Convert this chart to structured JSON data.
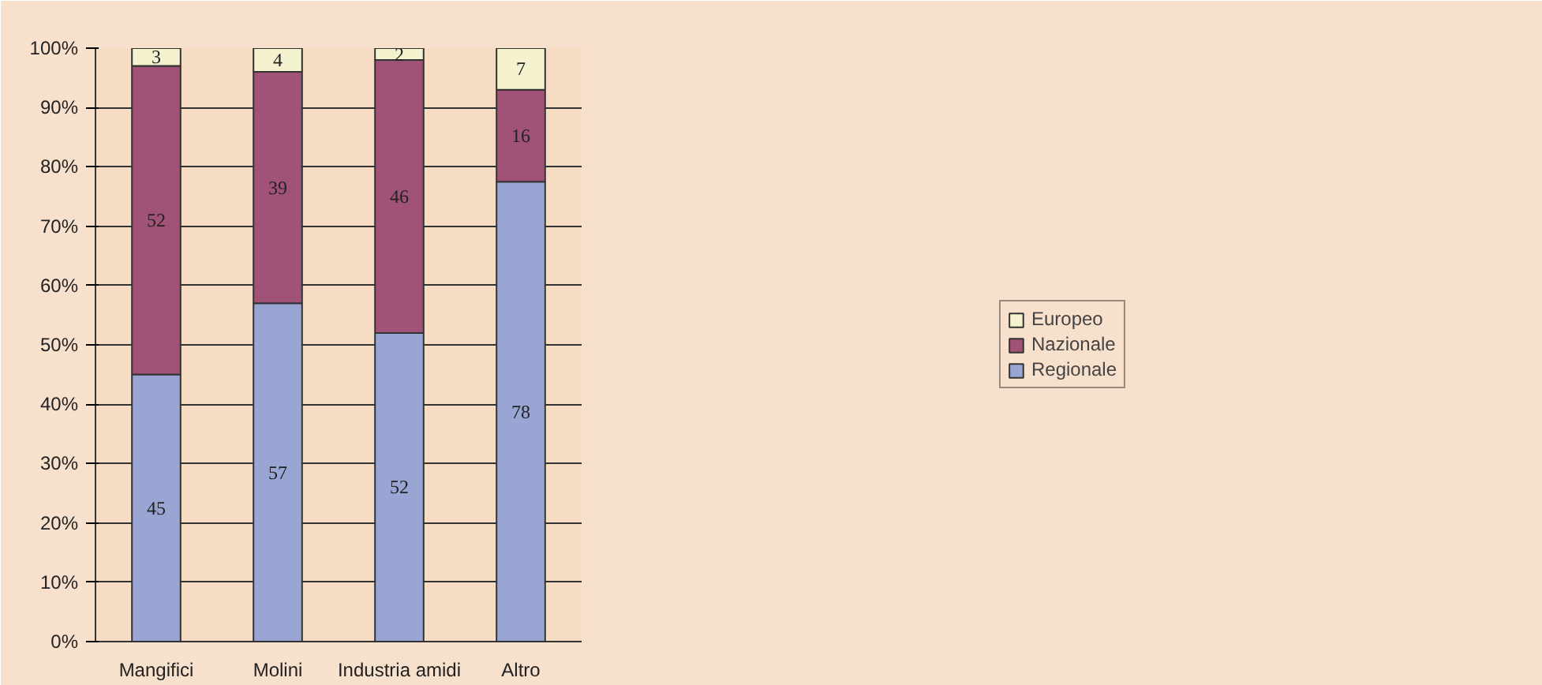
{
  "chart_data": {
    "type": "bar",
    "stacked": true,
    "categories": [
      "Mangifici",
      "Molini",
      "Industria amidi",
      "Altro"
    ],
    "series": [
      {
        "name": "Regionale",
        "color": "#99a6d4",
        "values": [
          45,
          57,
          52,
          77.5
        ],
        "value_labels": [
          "45",
          "57",
          "52",
          "78"
        ]
      },
      {
        "name": "Nazionale",
        "color": "#a05277",
        "values": [
          52,
          39,
          46,
          15.5
        ],
        "value_labels": [
          "52",
          "39",
          "46",
          "16"
        ]
      },
      {
        "name": "Europeo",
        "color": "#f5f3cf",
        "values": [
          3,
          4,
          2,
          7
        ],
        "value_labels": [
          "3",
          "4",
          "2",
          "7"
        ]
      }
    ],
    "ylim": [
      0,
      100
    ],
    "yticks": [
      {
        "value": 0,
        "label": "0%"
      },
      {
        "value": 10,
        "label": "10%"
      },
      {
        "value": 20,
        "label": "20%"
      },
      {
        "value": 30,
        "label": "30%"
      },
      {
        "value": 40,
        "label": "40%"
      },
      {
        "value": 50,
        "label": "50%"
      },
      {
        "value": 60,
        "label": "60%"
      },
      {
        "value": 70,
        "label": "70%"
      },
      {
        "value": 80,
        "label": "80%"
      },
      {
        "value": 90,
        "label": "90%"
      },
      {
        "value": 100,
        "label": "100%"
      }
    ],
    "grid": "y",
    "legend": "right"
  }
}
